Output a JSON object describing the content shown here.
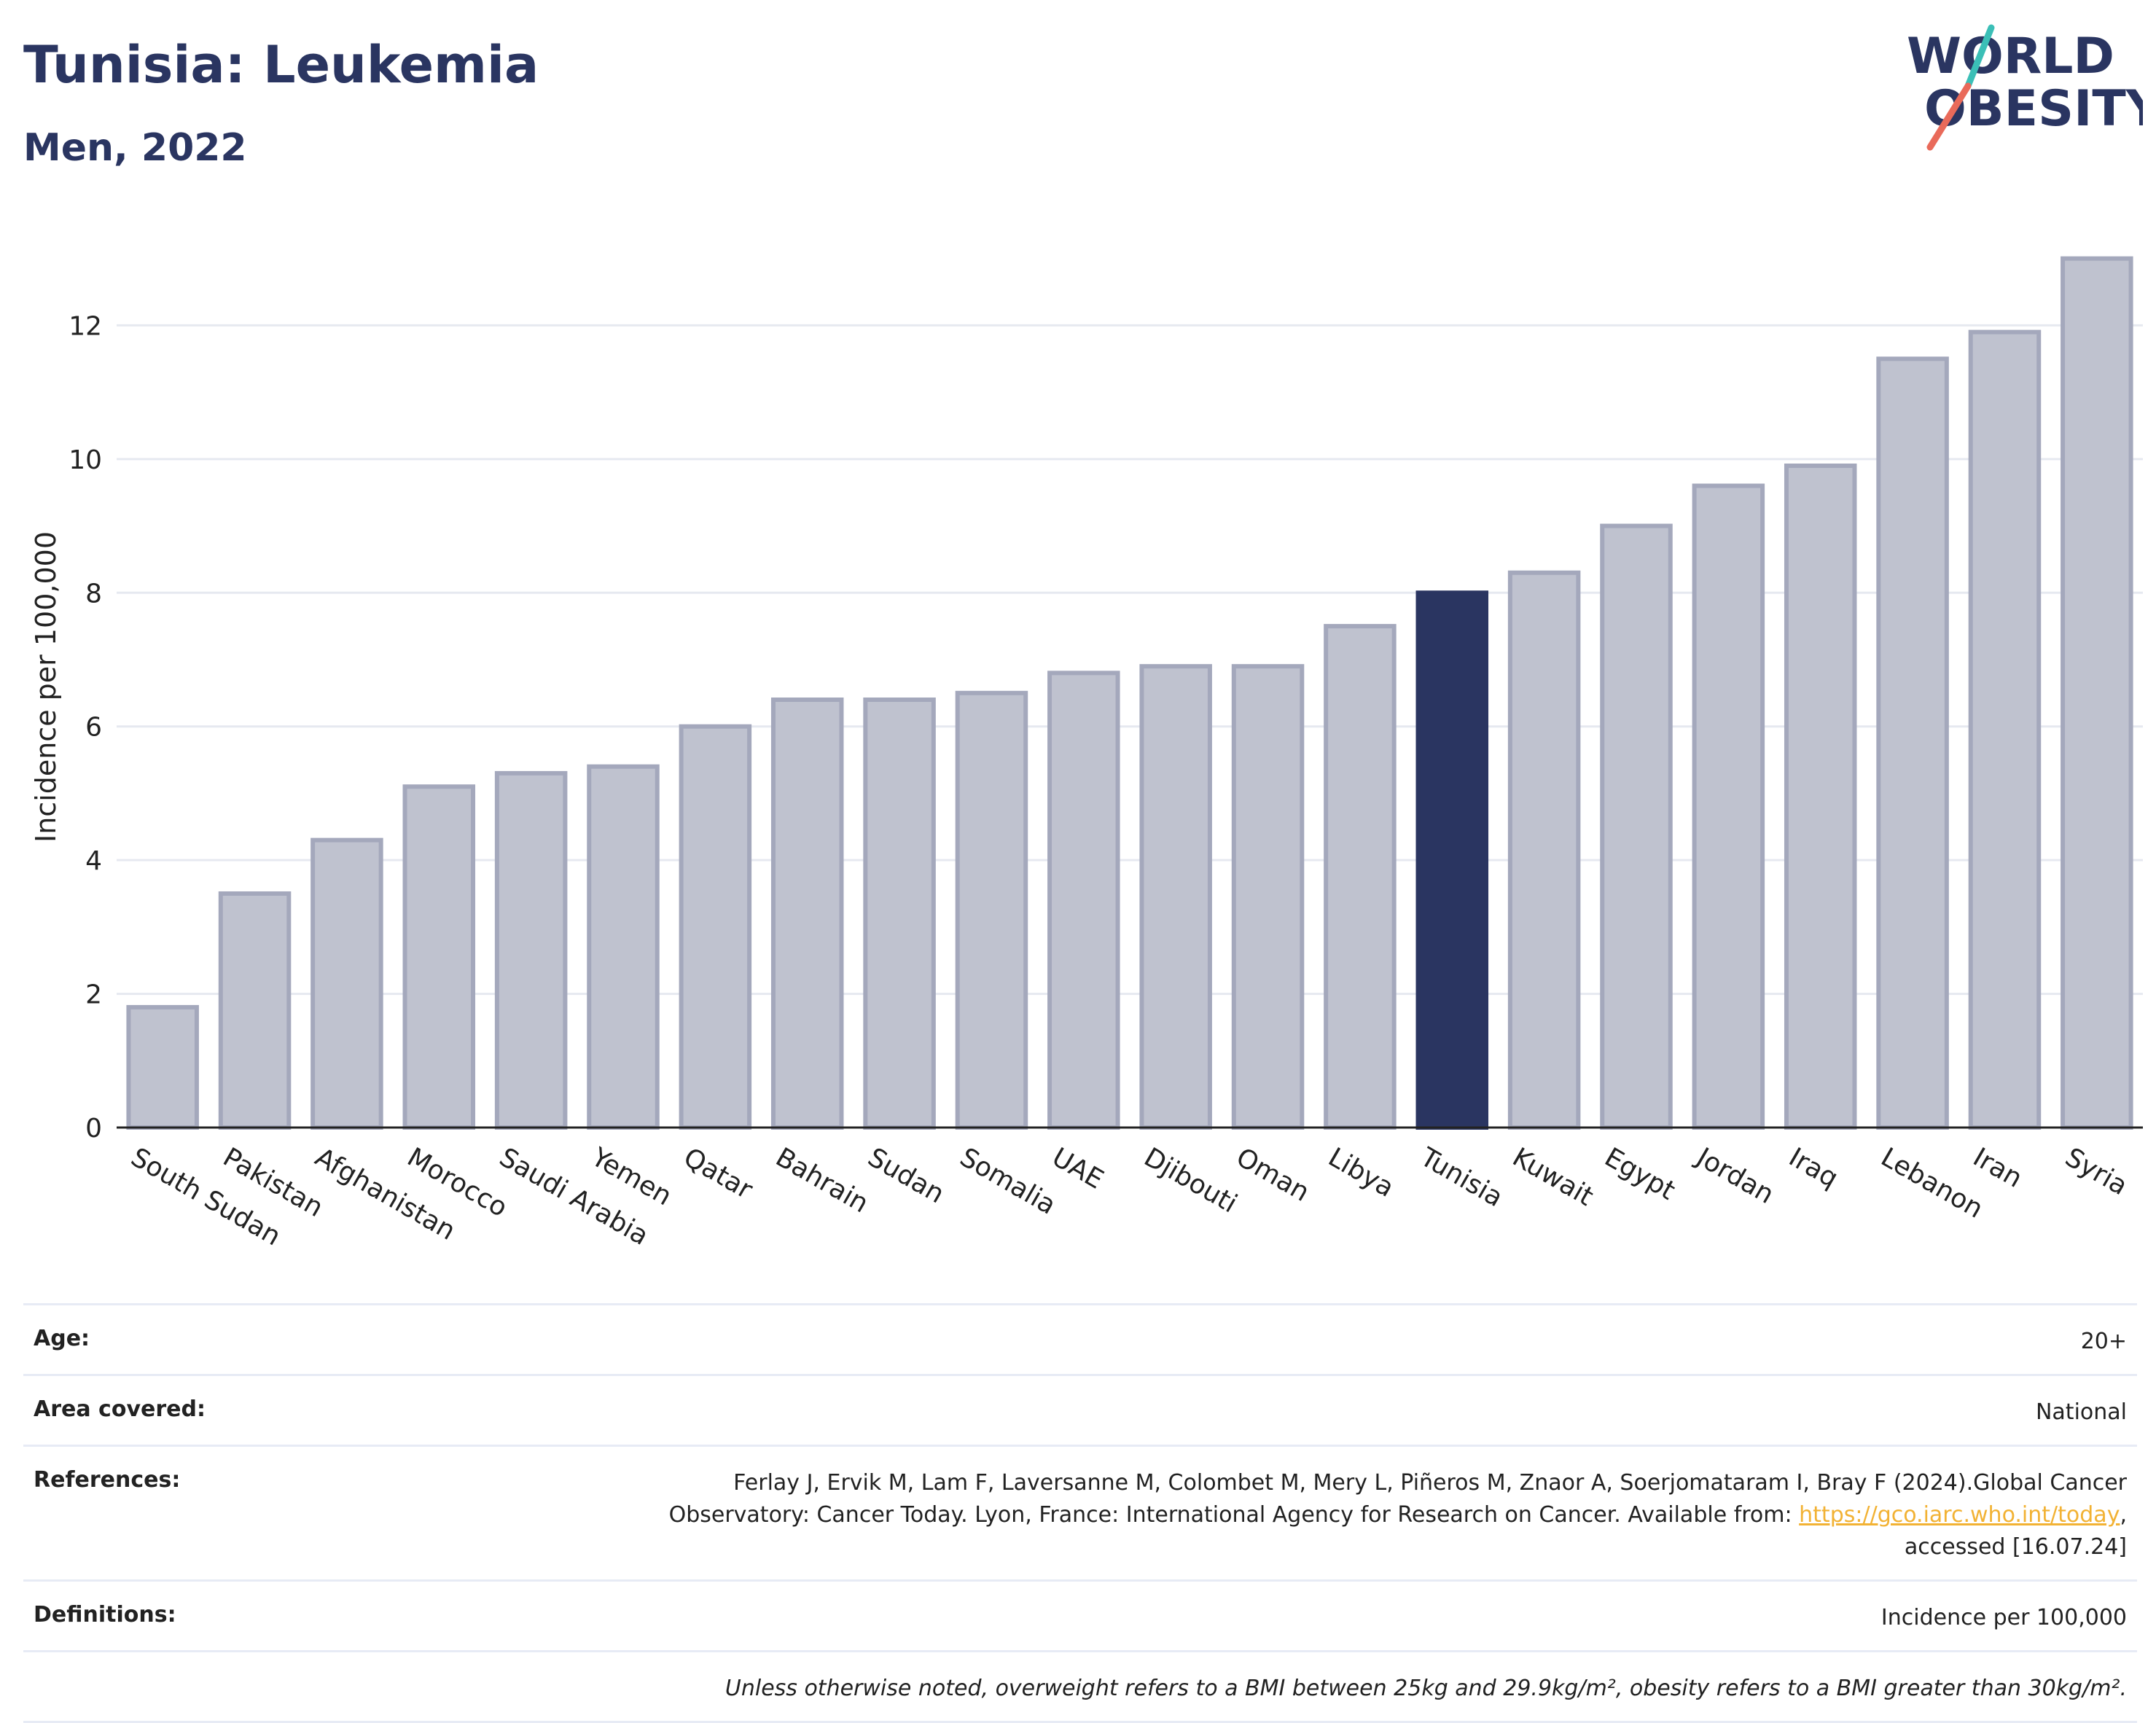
{
  "header": {
    "title": "Tunisia: Leukemia",
    "subtitle": "Men, 2022"
  },
  "logo": {
    "line1": "WORLD",
    "line2": "OBESITY"
  },
  "colors": {
    "highlight": "#2a3561",
    "bar_fill": "#bfc2cf",
    "bar_stroke": "#a4a8bc",
    "grid": "#e6e9f0",
    "logo_teal": "#3bbfb7",
    "logo_coral": "#e96a5a",
    "link": "#f2b234"
  },
  "chart_data": {
    "type": "bar",
    "ylabel": "Incidence per 100,000",
    "xlabel": "",
    "ylim": [
      0,
      13.4
    ],
    "yticks": [
      0,
      2,
      4,
      6,
      8,
      10,
      12
    ],
    "highlight": "Tunisia",
    "grid": "horizontal",
    "categories": [
      "South Sudan",
      "Pakistan",
      "Afghanistan",
      "Morocco",
      "Saudi Arabia",
      "Yemen",
      "Qatar",
      "Bahrain",
      "Sudan",
      "Somalia",
      "UAE",
      "Djibouti",
      "Oman",
      "Libya",
      "Tunisia",
      "Kuwait",
      "Egypt",
      "Jordan",
      "Iraq",
      "Lebanon",
      "Iran",
      "Syria"
    ],
    "values": [
      1.8,
      3.5,
      4.3,
      5.1,
      5.3,
      5.4,
      6.0,
      6.4,
      6.4,
      6.5,
      6.8,
      6.9,
      6.9,
      7.5,
      8.0,
      8.3,
      9.0,
      9.6,
      9.9,
      11.5,
      11.9,
      13.0
    ]
  },
  "info": {
    "age_label": "Age:",
    "age_value": "20+",
    "area_label": "Area covered:",
    "area_value": "National",
    "references_label": "References:",
    "references_line1": "Ferlay J, Ervik M, Lam F, Laversanne M, Colombet M, Mery L, Piñeros M, Znaor A, Soerjomataram I, Bray F (2024).Global Cancer",
    "references_line2_pre": "Observatory: Cancer Today. Lyon, France: International Agency for Research on Cancer. Available from: ",
    "references_link": "https://gco.iarc.who.int/today",
    "references_line2_post": ",",
    "references_line3": "accessed [16.07.24]",
    "definitions_label": "Definitions:",
    "definitions_value": "Incidence per 100,000",
    "note": "Unless otherwise noted, overweight refers to a BMI between 25kg and 29.9kg/m², obesity refers to a BMI greater than 30kg/m²."
  }
}
